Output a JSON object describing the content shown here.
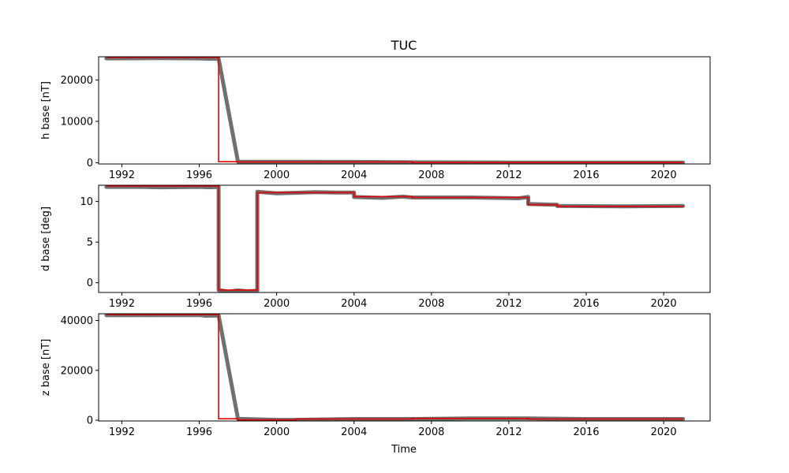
{
  "chart_data": {
    "type": "line",
    "title": "TUC",
    "xlabel": "Time",
    "x_ticks": [
      1992,
      1996,
      2000,
      2004,
      2008,
      2012,
      2016,
      2020
    ],
    "xlim": [
      1990.8,
      2022.4
    ],
    "colors": {
      "baseline": "#e60000",
      "points": "#707070"
    },
    "panels": [
      {
        "name": "h",
        "ylabel": "h base [nT]",
        "ylim": [
          -300,
          25600
        ],
        "y_ticks": [
          0,
          10000,
          20000
        ],
        "series": [
          {
            "role": "baseline",
            "points": [
              [
                1991.2,
                25450
              ],
              [
                1997.0,
                25450
              ],
              [
                1997.0,
                250
              ],
              [
                1998.0,
                250
              ],
              [
                1998.0,
                200
              ],
              [
                2007.0,
                200
              ],
              [
                2007.0,
                50
              ],
              [
                2021.0,
                50
              ]
            ]
          },
          {
            "role": "measurements",
            "points": [
              [
                1991.2,
                25200
              ],
              [
                1994.0,
                25250
              ],
              [
                1996.0,
                25200
              ],
              [
                1996.5,
                25100
              ],
              [
                1997.0,
                25150
              ],
              [
                1998.0,
                250
              ],
              [
                2004.0,
                200
              ],
              [
                2007.0,
                100
              ],
              [
                2012.0,
                50
              ],
              [
                2021.0,
                50
              ]
            ]
          }
        ]
      },
      {
        "name": "d",
        "ylabel": "d base [deg]",
        "ylim": [
          -1.2,
          12.0
        ],
        "y_ticks": [
          0,
          5,
          10
        ],
        "series": [
          {
            "role": "baseline",
            "points": [
              [
                1991.2,
                11.9
              ],
              [
                1997.0,
                11.9
              ],
              [
                1997.0,
                -0.9
              ],
              [
                1999.0,
                -0.9
              ],
              [
                1999.0,
                11.1
              ],
              [
                2004.0,
                11.1
              ],
              [
                2004.0,
                10.6
              ],
              [
                2007.0,
                10.6
              ],
              [
                2007.0,
                10.5
              ],
              [
                2013.0,
                10.5
              ],
              [
                2013.0,
                9.6
              ],
              [
                2014.5,
                9.6
              ],
              [
                2014.5,
                9.4
              ],
              [
                2021.0,
                9.4
              ]
            ]
          },
          {
            "role": "measurements",
            "points": [
              [
                1991.2,
                11.8
              ],
              [
                1993.0,
                11.8
              ],
              [
                1994.0,
                11.75
              ],
              [
                1996.0,
                11.8
              ],
              [
                1996.5,
                11.75
              ],
              [
                1997.0,
                11.8
              ],
              [
                1997.0,
                -0.9
              ],
              [
                1997.5,
                -1.1
              ],
              [
                1998.0,
                -0.95
              ],
              [
                1998.5,
                -1.05
              ],
              [
                1999.0,
                -1.0
              ],
              [
                1999.0,
                11.2
              ],
              [
                2000.0,
                11.0
              ],
              [
                2002.0,
                11.15
              ],
              [
                2003.0,
                11.1
              ],
              [
                2004.0,
                11.1
              ],
              [
                2004.0,
                10.55
              ],
              [
                2005.5,
                10.45
              ],
              [
                2006.5,
                10.6
              ],
              [
                2007.0,
                10.5
              ],
              [
                2010.0,
                10.5
              ],
              [
                2012.5,
                10.4
              ],
              [
                2013.0,
                10.55
              ],
              [
                2013.0,
                9.7
              ],
              [
                2014.5,
                9.6
              ],
              [
                2014.5,
                9.45
              ],
              [
                2018.0,
                9.4
              ],
              [
                2021.0,
                9.45
              ]
            ]
          }
        ]
      },
      {
        "name": "z",
        "ylabel": "z base [nT]",
        "ylim": [
          -300,
          42700
        ],
        "y_ticks": [
          0,
          20000,
          40000
        ],
        "series": [
          {
            "role": "baseline",
            "points": [
              [
                1991.2,
                42400
              ],
              [
                1997.0,
                42400
              ],
              [
                1997.0,
                600
              ],
              [
                1998.0,
                600
              ],
              [
                1998.0,
                150
              ],
              [
                2001.0,
                150
              ],
              [
                2001.0,
                500
              ],
              [
                2007.0,
                500
              ],
              [
                2007.0,
                700
              ],
              [
                2013.0,
                700
              ],
              [
                2013.0,
                500
              ],
              [
                2021.0,
                500
              ]
            ]
          },
          {
            "role": "measurements",
            "points": [
              [
                1991.2,
                42100
              ],
              [
                1994.0,
                42150
              ],
              [
                1996.0,
                42200
              ],
              [
                1996.3,
                41900
              ],
              [
                1997.0,
                42000
              ],
              [
                1998.0,
                600
              ],
              [
                2000.0,
                150
              ],
              [
                2001.0,
                150
              ],
              [
                2004.0,
                500
              ],
              [
                2007.0,
                500
              ],
              [
                2010.0,
                700
              ],
              [
                2013.0,
                700
              ],
              [
                2016.0,
                500
              ],
              [
                2021.0,
                500
              ]
            ]
          }
        ]
      }
    ]
  }
}
